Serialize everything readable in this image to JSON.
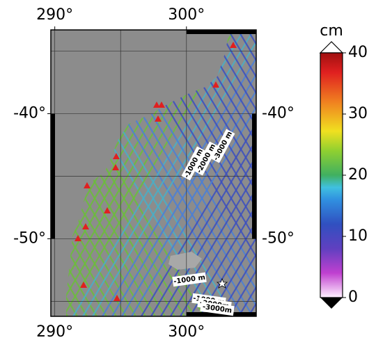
{
  "map": {
    "lon_range": [
      289.7,
      305.3
    ],
    "lat_range": [
      -56.2,
      -33.3
    ],
    "lon_ticks": [
      {
        "value": 290,
        "label": "290°"
      },
      {
        "value": 300,
        "label": "300°"
      }
    ],
    "lat_ticks": [
      {
        "value": -40,
        "label": "-40°"
      },
      {
        "value": -50,
        "label": "-50°"
      }
    ],
    "lon_grid": [
      290,
      295,
      300
    ],
    "lat_grid": [
      -35,
      -40,
      -45,
      -50,
      -55
    ],
    "contour_labels": [
      "-1000 m",
      "-2000 m",
      "-3000 m",
      "-1000 m",
      "-1000 m",
      "-2000m",
      "-3000m"
    ]
  },
  "colorbar": {
    "unit": "cm",
    "range": [
      0,
      40
    ],
    "ticks": [
      0,
      10,
      20,
      30,
      40
    ]
  }
}
